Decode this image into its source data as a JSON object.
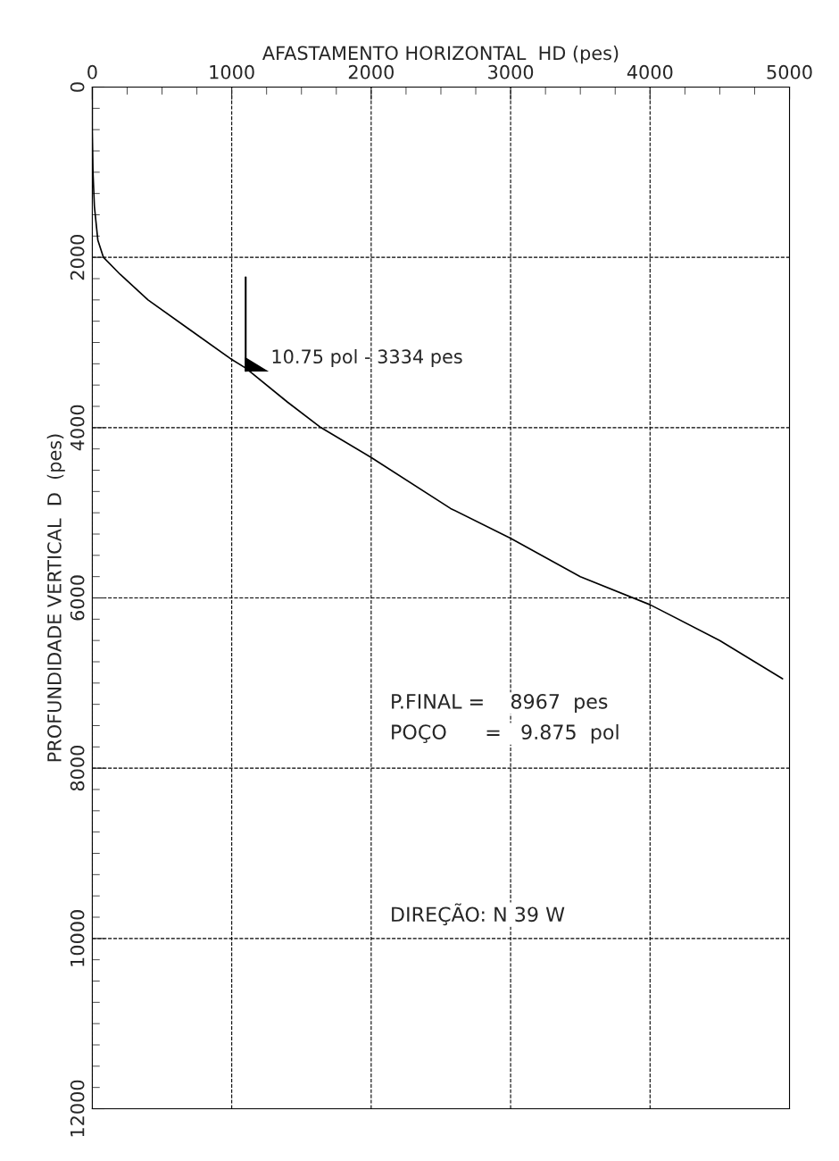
{
  "chart_data": {
    "type": "line",
    "xlabel": "AFASTAMENTO HORIZONTAL  HD (pes)",
    "ylabel": "PROFUNDIDADE VERTICAL  D  (pes)",
    "series": [
      {
        "color": "#000000",
        "x": [
          0,
          0,
          5,
          15,
          40,
          80,
          200,
          400,
          700,
          1000,
          1100,
          1400,
          1640,
          2000,
          2570,
          3000,
          3500,
          4000,
          4500,
          4950
        ],
        "values": [
          0,
          500,
          1000,
          1400,
          1800,
          2000,
          2200,
          2500,
          2850,
          3200,
          3300,
          3700,
          4000,
          4350,
          4950,
          5300,
          5750,
          6080,
          6500,
          6950
        ]
      }
    ],
    "xlim": [
      0,
      5000
    ],
    "xticks": [
      0,
      1000,
      2000,
      3000,
      4000,
      5000
    ],
    "ylim": [
      12000,
      0
    ],
    "yticks": [
      0,
      2000,
      4000,
      6000,
      8000,
      10000,
      12000
    ],
    "grid": true,
    "marker": "none",
    "line_style": "solid",
    "annotations": [
      {
        "text": "10.75 pol - 3334 pes",
        "x": 1100,
        "y": 3334
      },
      "P.FINAL =    8967  pes",
      "POÇO      =   9.875  pol",
      "DIREÇÃO: N 39 W"
    ]
  }
}
